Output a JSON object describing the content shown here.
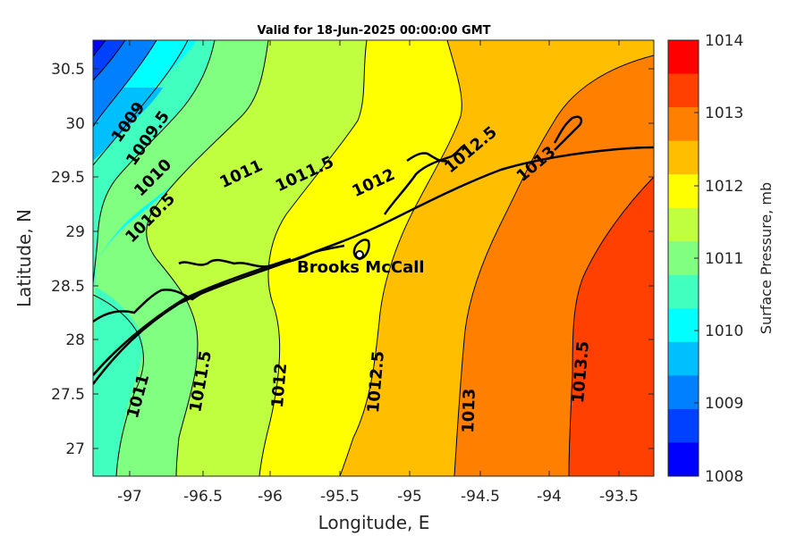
{
  "title": "Valid for 18-Jun-2025 00:00:00 GMT",
  "x_axis": {
    "label": "Longitude, E",
    "ticks": [
      "-97",
      "-96.5",
      "-96",
      "-95.5",
      "-95",
      "-94.5",
      "-94",
      "-93.5"
    ]
  },
  "y_axis": {
    "label": "Latitude, N",
    "ticks": [
      "30.5",
      "30",
      "29.5",
      "29",
      "28.5",
      "28",
      "27.5",
      "27"
    ]
  },
  "colorbar": {
    "label": "Surface Pressure, mb",
    "ticks": [
      "1014",
      "1013",
      "1012",
      "1011",
      "1010",
      "1009",
      "1008"
    ],
    "colors": [
      "#ff0000",
      "#ff4000",
      "#ff8000",
      "#ffbf00",
      "#ffff00",
      "#bfff40",
      "#80ff80",
      "#40ffbf",
      "#00ffff",
      "#00bfff",
      "#0080ff",
      "#0040ff",
      "#0000ff"
    ]
  },
  "contour_labels": [
    {
      "text": "1009"
    },
    {
      "text": "1009.5"
    },
    {
      "text": "1010"
    },
    {
      "text": "1010.5"
    },
    {
      "text": "1011"
    },
    {
      "text": "1011.5"
    },
    {
      "text": "1012"
    },
    {
      "text": "1012.5"
    },
    {
      "text": "1013"
    },
    {
      "text": "1011"
    },
    {
      "text": "1011.5"
    },
    {
      "text": "1012"
    },
    {
      "text": "1012.5"
    },
    {
      "text": "1013"
    },
    {
      "text": "1013.5"
    }
  ],
  "station": {
    "name": "Brooks McCall",
    "marker": "white-circle-marker"
  }
}
